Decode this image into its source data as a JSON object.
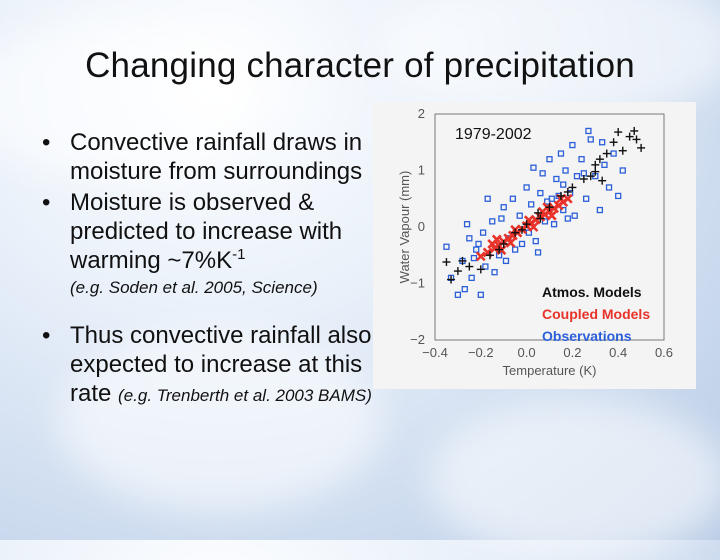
{
  "slide": {
    "title": "Changing character of precipitation",
    "bullets": [
      {
        "text": "Convective rainfall draws in moisture from surroundings"
      },
      {
        "text_before": "Moisture is observed & predicted to increase with warming ~7%K",
        "sup": "-1",
        "citation": "(e.g. Soden et al. 2005, Science)"
      },
      {
        "text": "Thus convective rainfall also expected to increase at this rate ",
        "citation": "(e.g. Trenberth et al. 2003 BAMS)"
      }
    ],
    "bullet_symbol": "•"
  },
  "chart_data": {
    "type": "scatter",
    "annotation": "1979-2002",
    "xlabel": "Temperature (K)",
    "ylabel": "Water Vapour (mm)",
    "xlim": [
      -0.4,
      0.6
    ],
    "ylim": [
      -2,
      2
    ],
    "xticks": [
      "−0.4",
      "−0.2",
      "0.0",
      "0.2",
      "0.4",
      "0.6"
    ],
    "yticks": [
      "2",
      "1",
      "0",
      "−1",
      "−2"
    ],
    "colors": {
      "atmos": "#111111",
      "coupled": "#e8332a",
      "obs": "#2b5fd9"
    },
    "series": [
      {
        "name": "Atmos. Models",
        "marker": "plus",
        "color": "#111111",
        "points": [
          [
            -0.33,
            -0.93
          ],
          [
            -0.35,
            -0.62
          ],
          [
            -0.3,
            -0.78
          ],
          [
            -0.25,
            -0.7
          ],
          [
            -0.2,
            -0.75
          ],
          [
            -0.16,
            -0.5
          ],
          [
            -0.1,
            -0.3
          ],
          [
            -0.05,
            -0.1
          ],
          [
            0.0,
            0.05
          ],
          [
            0.05,
            0.25
          ],
          [
            0.1,
            0.35
          ],
          [
            0.15,
            0.55
          ],
          [
            0.2,
            0.7
          ],
          [
            0.25,
            0.85
          ],
          [
            0.3,
            0.98
          ],
          [
            0.32,
            1.2
          ],
          [
            0.35,
            1.3
          ],
          [
            0.38,
            1.5
          ],
          [
            0.42,
            1.35
          ],
          [
            0.45,
            1.6
          ],
          [
            0.48,
            1.55
          ],
          [
            0.5,
            1.4
          ],
          [
            0.28,
            0.9
          ],
          [
            0.33,
            0.82
          ],
          [
            0.18,
            0.62
          ],
          [
            -0.12,
            -0.4
          ],
          [
            -0.28,
            -0.6
          ],
          [
            0.4,
            1.68
          ],
          [
            0.47,
            1.7
          ],
          [
            0.3,
            1.1
          ],
          [
            0.06,
            0.15
          ],
          [
            -0.02,
            -0.05
          ]
        ]
      },
      {
        "name": "Coupled Models",
        "marker": "x",
        "color": "#e8332a",
        "points": [
          [
            -0.2,
            -0.52
          ],
          [
            -0.17,
            -0.45
          ],
          [
            -0.14,
            -0.38
          ],
          [
            -0.12,
            -0.33
          ],
          [
            -0.1,
            -0.26
          ],
          [
            -0.08,
            -0.2
          ],
          [
            -0.06,
            -0.15
          ],
          [
            -0.04,
            -0.1
          ],
          [
            -0.02,
            -0.04
          ],
          [
            0.0,
            0.02
          ],
          [
            0.02,
            0.07
          ],
          [
            0.04,
            0.13
          ],
          [
            0.06,
            0.18
          ],
          [
            0.08,
            0.22
          ],
          [
            0.1,
            0.28
          ],
          [
            0.12,
            0.33
          ],
          [
            0.14,
            0.38
          ],
          [
            0.16,
            0.44
          ],
          [
            0.18,
            0.5
          ],
          [
            -0.15,
            -0.3
          ],
          [
            -0.11,
            -0.41
          ],
          [
            -0.05,
            -0.05
          ],
          [
            0.03,
            0.0
          ],
          [
            0.07,
            0.27
          ],
          [
            0.11,
            0.2
          ],
          [
            0.15,
            0.5
          ],
          [
            0.09,
            0.35
          ],
          [
            -0.07,
            -0.28
          ],
          [
            0.01,
            0.12
          ],
          [
            -0.13,
            -0.22
          ]
        ]
      },
      {
        "name": "Observations",
        "marker": "square",
        "color": "#2b5fd9",
        "points": [
          [
            -0.35,
            -0.35
          ],
          [
            -0.33,
            -0.9
          ],
          [
            -0.3,
            -1.2
          ],
          [
            -0.28,
            -0.6
          ],
          [
            -0.27,
            -1.1
          ],
          [
            -0.25,
            -0.2
          ],
          [
            -0.24,
            -0.9
          ],
          [
            -0.22,
            -0.4
          ],
          [
            -0.2,
            -1.2
          ],
          [
            -0.19,
            -0.1
          ],
          [
            -0.18,
            -0.7
          ],
          [
            -0.15,
            0.1
          ],
          [
            -0.14,
            -0.8
          ],
          [
            -0.12,
            -0.5
          ],
          [
            -0.1,
            0.35
          ],
          [
            -0.09,
            -0.6
          ],
          [
            -0.08,
            -0.2
          ],
          [
            -0.06,
            0.5
          ],
          [
            -0.05,
            -0.4
          ],
          [
            -0.03,
            0.2
          ],
          [
            -0.02,
            -0.3
          ],
          [
            0.0,
            0.7
          ],
          [
            0.01,
            -0.1
          ],
          [
            0.02,
            0.4
          ],
          [
            0.03,
            1.05
          ],
          [
            0.04,
            -0.25
          ],
          [
            0.06,
            0.6
          ],
          [
            0.07,
            0.95
          ],
          [
            0.08,
            0.1
          ],
          [
            0.1,
            1.2
          ],
          [
            0.11,
            0.5
          ],
          [
            0.12,
            0.05
          ],
          [
            0.13,
            0.85
          ],
          [
            0.15,
            1.3
          ],
          [
            0.16,
            0.3
          ],
          [
            0.17,
            1.0
          ],
          [
            0.19,
            0.6
          ],
          [
            0.2,
            1.45
          ],
          [
            0.21,
            0.2
          ],
          [
            0.22,
            0.9
          ],
          [
            0.24,
            1.2
          ],
          [
            0.26,
            0.5
          ],
          [
            0.28,
            1.55
          ],
          [
            0.3,
            0.9
          ],
          [
            0.32,
            0.3
          ],
          [
            0.34,
            1.1
          ],
          [
            0.36,
            0.7
          ],
          [
            0.38,
            1.3
          ],
          [
            0.4,
            0.55
          ],
          [
            0.42,
            1.0
          ],
          [
            -0.26,
            0.05
          ],
          [
            -0.17,
            0.5
          ],
          [
            0.05,
            -0.45
          ],
          [
            -0.21,
            -0.3
          ],
          [
            0.09,
            0.45
          ],
          [
            0.14,
            0.55
          ],
          [
            0.25,
            0.95
          ],
          [
            0.18,
            0.15
          ],
          [
            -0.11,
            0.15
          ],
          [
            -0.23,
            -0.55
          ],
          [
            0.27,
            1.7
          ],
          [
            0.33,
            1.5
          ],
          [
            0.16,
            0.75
          ]
        ]
      }
    ],
    "legend": [
      "Atmos. Models",
      "Coupled Models",
      "Observations"
    ],
    "legend_position": "bottom-right"
  }
}
